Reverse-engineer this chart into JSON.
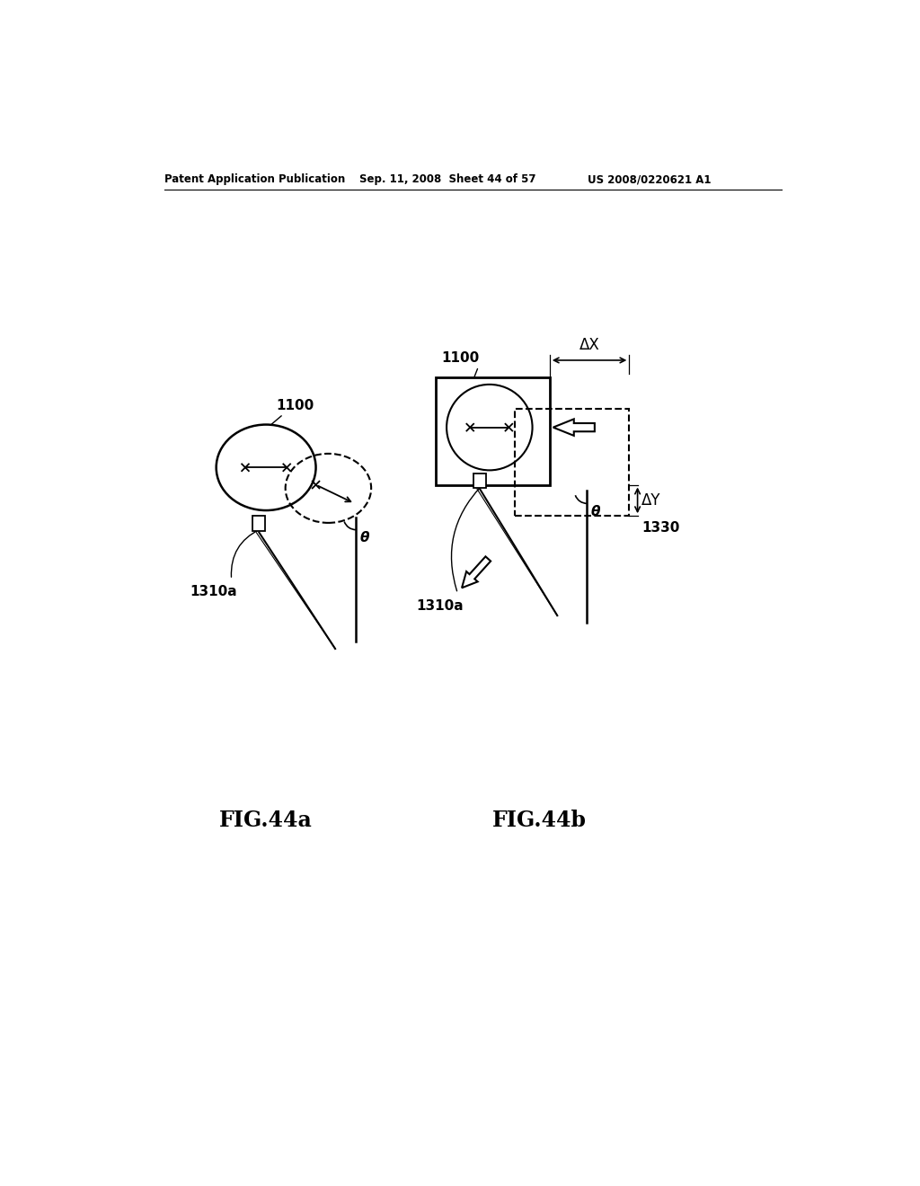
{
  "header_left": "Patent Application Publication",
  "header_mid": "Sep. 11, 2008  Sheet 44 of 57",
  "header_right": "US 2008/0220621 A1",
  "fig_a_label": "FIG.44a",
  "fig_b_label": "FIG.44b",
  "label_1100": "1100",
  "label_1310a": "1310a",
  "label_1330": "1330",
  "label_theta": "θ",
  "label_deltaX": "ΔX",
  "label_deltaY": "ΔY",
  "bg_color": "#ffffff",
  "line_color": "#000000"
}
